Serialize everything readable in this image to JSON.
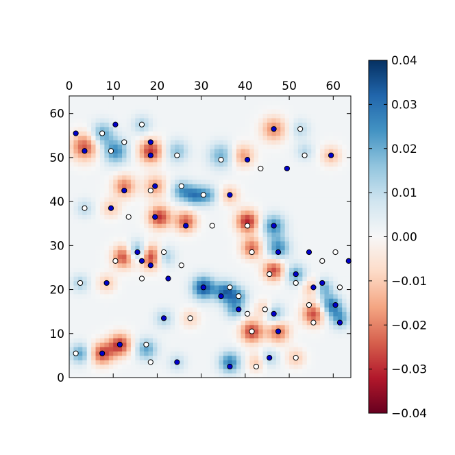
{
  "chart_data": {
    "type": "heatmap",
    "title": "",
    "xlabel": "",
    "ylabel": "",
    "xlim": [
      0,
      64
    ],
    "ylim": [
      0,
      64
    ],
    "x_ticks": [
      0,
      10,
      20,
      30,
      40,
      50,
      60
    ],
    "y_ticks": [
      0,
      10,
      20,
      30,
      40,
      50,
      60
    ],
    "x_tick_labels": [
      "0",
      "10",
      "20",
      "30",
      "40",
      "50",
      "60"
    ],
    "y_tick_labels": [
      "0",
      "10",
      "20",
      "30",
      "40",
      "50",
      "60"
    ],
    "x_axis_position": "top",
    "colormap": "RdBu",
    "colorbar": {
      "range": [
        -0.04,
        0.04
      ],
      "ticks": [
        0.04,
        0.03,
        0.02,
        0.01,
        0.0,
        -0.01,
        -0.02,
        -0.03,
        -0.04
      ],
      "tick_labels": [
        "0.04",
        "0.03",
        "0.02",
        "0.01",
        "0.00",
        "−0.01",
        "−0.02",
        "−0.03",
        "−0.04"
      ],
      "colors": [
        "#67001f",
        "#b2182b",
        "#d6604d",
        "#f4a582",
        "#fddbc7",
        "#f7f7f7",
        "#d1e5f0",
        "#92c5de",
        "#4393c3",
        "#2166ac",
        "#053061"
      ]
    },
    "marker_colors": {
      "filled": "#0000cc",
      "open": "#ffffff",
      "edge": "#000000"
    },
    "filled_points": [
      [
        1,
        55
      ],
      [
        3,
        51
      ],
      [
        10,
        57
      ],
      [
        18,
        53
      ],
      [
        18,
        50
      ],
      [
        7,
        5
      ],
      [
        11,
        7
      ],
      [
        24,
        3
      ],
      [
        36,
        2
      ],
      [
        45,
        4
      ],
      [
        47,
        10
      ],
      [
        46,
        14
      ],
      [
        38,
        15
      ],
      [
        34,
        18
      ],
      [
        30,
        20
      ],
      [
        22,
        22
      ],
      [
        21,
        13
      ],
      [
        8,
        21
      ],
      [
        15,
        28
      ],
      [
        16,
        26
      ],
      [
        18,
        25
      ],
      [
        19,
        36
      ],
      [
        26,
        34
      ],
      [
        19,
        43
      ],
      [
        12,
        42
      ],
      [
        9,
        38
      ],
      [
        36,
        41
      ],
      [
        40,
        49
      ],
      [
        46,
        56
      ],
      [
        49,
        47
      ],
      [
        59,
        50
      ],
      [
        46,
        34
      ],
      [
        47,
        28
      ],
      [
        51,
        23
      ],
      [
        54,
        28
      ],
      [
        55,
        20
      ],
      [
        57,
        21
      ],
      [
        60,
        16
      ],
      [
        61,
        12
      ],
      [
        63,
        26
      ]
    ],
    "open_points": [
      [
        7,
        55
      ],
      [
        12,
        53
      ],
      [
        16,
        57
      ],
      [
        9,
        51
      ],
      [
        24,
        50
      ],
      [
        34,
        49
      ],
      [
        43,
        47
      ],
      [
        52,
        56
      ],
      [
        53,
        50
      ],
      [
        25,
        43
      ],
      [
        30,
        41
      ],
      [
        18,
        42
      ],
      [
        3,
        38
      ],
      [
        13,
        36
      ],
      [
        32,
        34
      ],
      [
        40,
        34
      ],
      [
        41,
        28
      ],
      [
        45,
        23
      ],
      [
        57,
        26
      ],
      [
        60,
        28
      ],
      [
        61,
        20
      ],
      [
        54,
        16
      ],
      [
        55,
        12
      ],
      [
        51,
        21
      ],
      [
        44,
        15
      ],
      [
        40,
        14
      ],
      [
        41,
        10
      ],
      [
        42,
        2
      ],
      [
        51,
        4
      ],
      [
        36,
        20
      ],
      [
        38,
        18
      ],
      [
        27,
        13
      ],
      [
        16,
        22
      ],
      [
        25,
        25
      ],
      [
        21,
        28
      ],
      [
        10,
        26
      ],
      [
        2,
        21
      ],
      [
        1,
        5
      ],
      [
        17,
        7
      ],
      [
        18,
        3
      ]
    ],
    "pixel_sources": [
      [
        3,
        52,
        -0.026,
        2.2
      ],
      [
        7,
        55,
        0.02,
        1.8
      ],
      [
        10,
        51,
        0.024,
        2.0
      ],
      [
        18,
        51,
        -0.03,
        1.9
      ],
      [
        16,
        57,
        0.012,
        1.5
      ],
      [
        24,
        51,
        0.015,
        1.8
      ],
      [
        34,
        50,
        0.018,
        2.0
      ],
      [
        39,
        50,
        -0.018,
        1.8
      ],
      [
        46,
        56,
        -0.02,
        2.0
      ],
      [
        52,
        56,
        0.01,
        1.5
      ],
      [
        53,
        51,
        0.01,
        1.4
      ],
      [
        59,
        50,
        -0.014,
        1.6
      ],
      [
        12,
        43,
        -0.022,
        1.8
      ],
      [
        19,
        43,
        -0.018,
        1.8
      ],
      [
        25,
        42,
        0.02,
        1.6
      ],
      [
        28,
        41,
        0.024,
        1.6
      ],
      [
        31,
        41,
        0.018,
        1.5
      ],
      [
        36,
        41,
        -0.014,
        1.5
      ],
      [
        3,
        38,
        0.01,
        1.4
      ],
      [
        9,
        38,
        -0.012,
        1.5
      ],
      [
        20,
        36,
        -0.03,
        1.8
      ],
      [
        26,
        35,
        -0.026,
        1.7
      ],
      [
        40,
        35,
        -0.032,
        1.8
      ],
      [
        46,
        34,
        0.024,
        1.8
      ],
      [
        47,
        29,
        0.024,
        1.8
      ],
      [
        41,
        29,
        -0.024,
        1.7
      ],
      [
        12,
        27,
        -0.03,
        1.8
      ],
      [
        15,
        28,
        0.028,
        1.7
      ],
      [
        18,
        27,
        -0.035,
        1.9
      ],
      [
        21,
        27,
        0.018,
        1.6
      ],
      [
        46,
        24,
        -0.028,
        1.7
      ],
      [
        51,
        23,
        0.02,
        1.6
      ],
      [
        30,
        20,
        0.034,
        1.8
      ],
      [
        35,
        19,
        0.03,
        1.7
      ],
      [
        38,
        18,
        0.018,
        1.5
      ],
      [
        2,
        21,
        0.012,
        1.4
      ],
      [
        8,
        21,
        -0.012,
        1.5
      ],
      [
        55,
        20,
        -0.018,
        1.6
      ],
      [
        57,
        20,
        0.024,
        1.5
      ],
      [
        59,
        16,
        0.026,
        1.7
      ],
      [
        61,
        13,
        0.02,
        1.6
      ],
      [
        55,
        14,
        -0.028,
        1.8
      ],
      [
        46,
        14,
        0.02,
        1.6
      ],
      [
        47,
        10,
        -0.024,
        1.8
      ],
      [
        41,
        10,
        -0.03,
        1.8
      ],
      [
        21,
        13,
        0.012,
        1.5
      ],
      [
        27,
        13,
        -0.01,
        1.5
      ],
      [
        2,
        5,
        0.02,
        1.6
      ],
      [
        7,
        5,
        -0.028,
        1.8
      ],
      [
        11,
        7,
        -0.03,
        1.8
      ],
      [
        17,
        6,
        0.02,
        1.7
      ],
      [
        24,
        3,
        0.01,
        1.4
      ],
      [
        36,
        3,
        0.026,
        1.7
      ],
      [
        42,
        3,
        -0.012,
        1.5
      ],
      [
        51,
        4,
        -0.012,
        1.5
      ],
      [
        45,
        4,
        0.012,
        1.4
      ],
      [
        37,
        15,
        0.018,
        1.5
      ],
      [
        44,
        15,
        -0.014,
        1.5
      ]
    ]
  }
}
